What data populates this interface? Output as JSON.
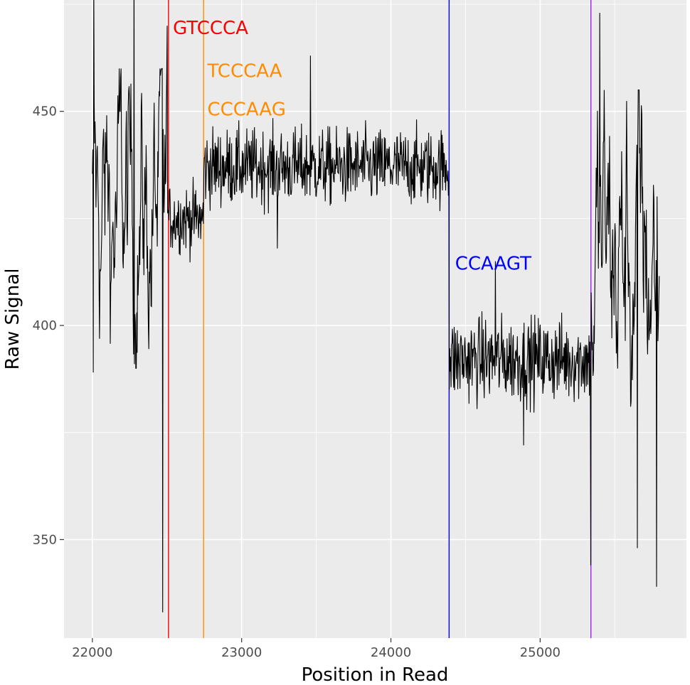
{
  "chart_data": {
    "type": "line",
    "xlabel": "Position in Read",
    "ylabel": "Raw Signal",
    "xlim": [
      21810,
      25980
    ],
    "ylim": [
      327,
      476
    ],
    "x_ticks": [
      22000,
      23000,
      24000,
      25000
    ],
    "y_ticks": [
      350,
      400,
      450
    ],
    "grid": true,
    "background": "#ebebeb",
    "series_color": "#000000",
    "signal_profile": {
      "x_start": 22000,
      "x_end": 25800,
      "x_step": 3,
      "segments": [
        {
          "x_from": 22000,
          "x_to": 22500,
          "center": 425,
          "spread": 35,
          "regime": "noisy"
        },
        {
          "x_from": 22500,
          "x_to": 22745,
          "center": 425,
          "spread": 4
        },
        {
          "x_from": 22745,
          "x_to": 24390,
          "center": 437,
          "spread": 4.5
        },
        {
          "x_from": 24390,
          "x_to": 25340,
          "center": 392,
          "spread": 5
        },
        {
          "x_from": 25340,
          "x_to": 25800,
          "center": 415,
          "spread": 40,
          "regime": "noisy"
        }
      ],
      "extremes": [
        {
          "x": 22005,
          "y": 389
        },
        {
          "x": 22010,
          "y": 481
        },
        {
          "x": 22280,
          "y": 489
        },
        {
          "x": 22470,
          "y": 333
        },
        {
          "x": 22500,
          "y": 470
        },
        {
          "x": 23240,
          "y": 418
        },
        {
          "x": 23460,
          "y": 463
        },
        {
          "x": 24700,
          "y": 415
        },
        {
          "x": 24890,
          "y": 372
        },
        {
          "x": 25340,
          "y": 344
        },
        {
          "x": 25400,
          "y": 473
        },
        {
          "x": 25650,
          "y": 348
        },
        {
          "x": 25780,
          "y": 339
        }
      ]
    },
    "boundaries": [
      {
        "x": 22510,
        "color": "#ff0000"
      },
      {
        "x": 22745,
        "color": "#ff8c00"
      },
      {
        "x": 24390,
        "color": "#0000ff"
      },
      {
        "x": 25340,
        "color": "#a020f0"
      }
    ],
    "annotations": [
      {
        "text": "GTCCCA",
        "x": 22540,
        "y": 468,
        "color": "#ff0000"
      },
      {
        "text": "TCCCAA",
        "x": 22770,
        "y": 458,
        "color": "#ff8c00"
      },
      {
        "text": "CCCAAG",
        "x": 22770,
        "y": 449,
        "color": "#ff8c00"
      },
      {
        "text": "CCAAGT",
        "x": 24430,
        "y": 413,
        "color": "#0000ff"
      }
    ]
  }
}
